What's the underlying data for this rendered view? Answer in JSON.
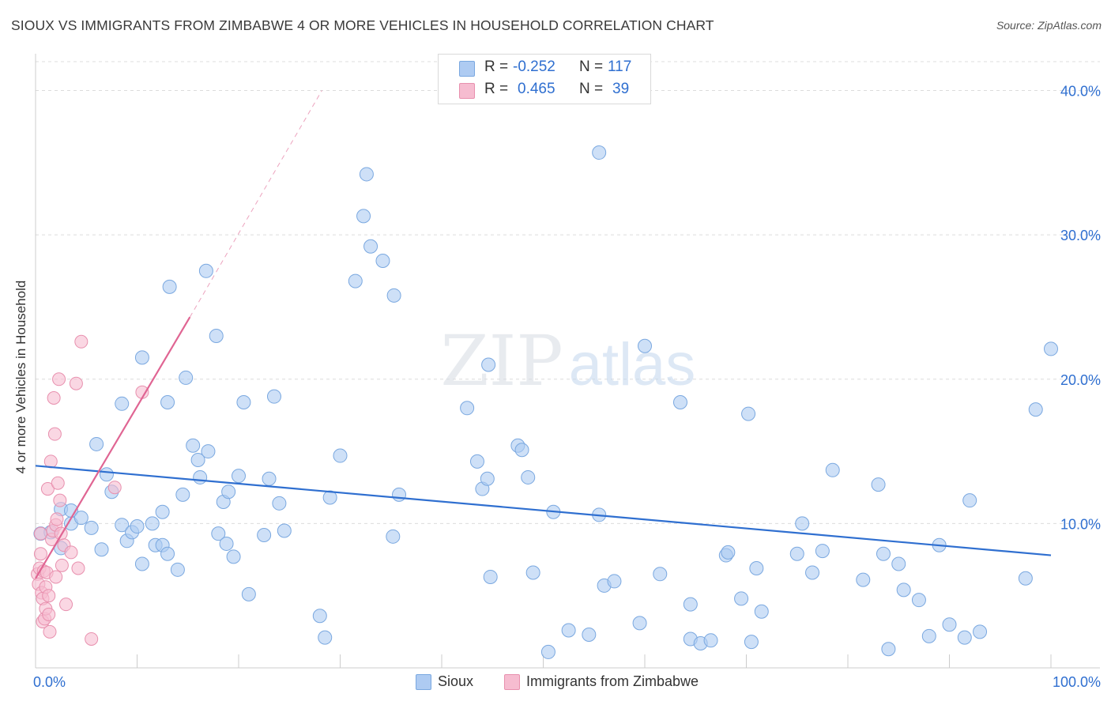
{
  "header": {
    "title": "SIOUX VS IMMIGRANTS FROM ZIMBABWE 4 OR MORE VEHICLES IN HOUSEHOLD CORRELATION CHART",
    "source": "Source: ZipAtlas.com"
  },
  "watermark": {
    "part1": "ZIP",
    "part2": "atlas"
  },
  "legend": {
    "r_label": "R =",
    "n_label": "N =",
    "rows": [
      {
        "r": "-0.252",
        "n": "117",
        "color": "#aecbf2"
      },
      {
        "r": "0.465",
        "n": "39",
        "color": "#f6bcd0"
      }
    ]
  },
  "bottom_legend": {
    "series1": "Sioux",
    "series2": "Immigrants from Zimbabwe"
  },
  "colors": {
    "sioux_fill": "#aecbf2",
    "sioux_stroke": "#7aa8e0",
    "sioux_line": "#2f6fd0",
    "zim_fill": "#f6bcd0",
    "zim_stroke": "#e890ae",
    "zim_line": "#e06593",
    "tick_text": "#2f6fd0"
  },
  "chart_data": {
    "type": "scatter",
    "title": "SIOUX VS IMMIGRANTS FROM ZIMBABWE 4 OR MORE VEHICLES IN HOUSEHOLD CORRELATION CHART",
    "xlabel": "",
    "ylabel": "4 or more Vehicles in Household",
    "xlim": [
      0,
      100
    ],
    "ylim": [
      0,
      42
    ],
    "x_tick_labels": [
      "0.0%",
      "100.0%"
    ],
    "y_ticks": [
      10,
      20,
      30,
      40
    ],
    "y_tick_labels": [
      "10.0%",
      "20.0%",
      "30.0%",
      "40.0%"
    ],
    "grid": true,
    "series": [
      {
        "name": "Sioux",
        "trend": {
          "x0": 0,
          "y0": 14.0,
          "x1": 100,
          "y1": 7.8
        },
        "points": [
          [
            0.5,
            9.3
          ],
          [
            1.5,
            9.4
          ],
          [
            2.5,
            8.3
          ],
          [
            2.5,
            11.0
          ],
          [
            3.5,
            10.0
          ],
          [
            3.5,
            10.9
          ],
          [
            4.5,
            10.4
          ],
          [
            5.5,
            9.7
          ],
          [
            6.0,
            15.5
          ],
          [
            6.5,
            8.2
          ],
          [
            7.0,
            13.4
          ],
          [
            7.5,
            12.2
          ],
          [
            8.5,
            9.9
          ],
          [
            8.5,
            18.3
          ],
          [
            9.0,
            8.8
          ],
          [
            9.5,
            9.4
          ],
          [
            10.0,
            9.8
          ],
          [
            10.5,
            21.5
          ],
          [
            10.5,
            7.2
          ],
          [
            11.5,
            10.0
          ],
          [
            11.8,
            8.5
          ],
          [
            12.5,
            10.8
          ],
          [
            12.5,
            8.5
          ],
          [
            13.0,
            7.9
          ],
          [
            13.0,
            18.4
          ],
          [
            13.2,
            26.4
          ],
          [
            14.0,
            6.8
          ],
          [
            14.5,
            12.0
          ],
          [
            14.8,
            20.1
          ],
          [
            15.5,
            15.4
          ],
          [
            16.0,
            14.4
          ],
          [
            16.2,
            13.2
          ],
          [
            16.8,
            27.5
          ],
          [
            17.0,
            15.0
          ],
          [
            17.8,
            23.0
          ],
          [
            18.0,
            9.3
          ],
          [
            18.5,
            11.5
          ],
          [
            18.8,
            8.6
          ],
          [
            19.0,
            12.2
          ],
          [
            19.5,
            7.7
          ],
          [
            20.0,
            13.3
          ],
          [
            20.5,
            18.4
          ],
          [
            21.0,
            5.1
          ],
          [
            22.5,
            9.2
          ],
          [
            23.0,
            13.1
          ],
          [
            23.5,
            18.8
          ],
          [
            24.0,
            11.4
          ],
          [
            24.5,
            9.5
          ],
          [
            28.0,
            3.6
          ],
          [
            28.5,
            2.1
          ],
          [
            29.0,
            11.8
          ],
          [
            30.0,
            14.7
          ],
          [
            31.5,
            26.8
          ],
          [
            32.3,
            31.3
          ],
          [
            32.6,
            34.2
          ],
          [
            33.0,
            29.2
          ],
          [
            34.2,
            28.2
          ],
          [
            35.3,
            25.8
          ],
          [
            35.2,
            9.1
          ],
          [
            35.8,
            12.0
          ],
          [
            42.5,
            18.0
          ],
          [
            43.5,
            14.3
          ],
          [
            44.0,
            12.4
          ],
          [
            44.5,
            13.1
          ],
          [
            44.6,
            21.0
          ],
          [
            44.8,
            6.3
          ],
          [
            47.5,
            15.4
          ],
          [
            47.9,
            15.1
          ],
          [
            48.5,
            13.2
          ],
          [
            49.0,
            6.6
          ],
          [
            50.5,
            1.1
          ],
          [
            51.0,
            10.8
          ],
          [
            52.5,
            2.6
          ],
          [
            54.5,
            2.3
          ],
          [
            55.5,
            35.7
          ],
          [
            55.5,
            10.6
          ],
          [
            56.0,
            5.7
          ],
          [
            57.0,
            6.0
          ],
          [
            59.5,
            3.1
          ],
          [
            60.0,
            22.3
          ],
          [
            61.5,
            6.5
          ],
          [
            63.5,
            18.4
          ],
          [
            64.5,
            4.4
          ],
          [
            64.5,
            2.0
          ],
          [
            65.5,
            1.7
          ],
          [
            66.5,
            1.9
          ],
          [
            68.0,
            7.8
          ],
          [
            68.2,
            8.0
          ],
          [
            69.5,
            4.8
          ],
          [
            70.2,
            17.6
          ],
          [
            70.5,
            1.8
          ],
          [
            71.0,
            6.9
          ],
          [
            71.5,
            3.9
          ],
          [
            75.0,
            7.9
          ],
          [
            75.5,
            10.0
          ],
          [
            76.5,
            6.6
          ],
          [
            77.5,
            8.1
          ],
          [
            78.5,
            13.7
          ],
          [
            81.5,
            6.1
          ],
          [
            83.0,
            12.7
          ],
          [
            83.5,
            7.9
          ],
          [
            84.0,
            1.3
          ],
          [
            85.0,
            7.2
          ],
          [
            85.5,
            5.4
          ],
          [
            87.0,
            4.7
          ],
          [
            88.0,
            2.2
          ],
          [
            89.0,
            8.5
          ],
          [
            90.0,
            3.0
          ],
          [
            91.5,
            2.1
          ],
          [
            92.0,
            11.6
          ],
          [
            93.0,
            2.5
          ],
          [
            97.5,
            6.2
          ],
          [
            98.5,
            17.9
          ],
          [
            100.0,
            22.1
          ]
        ]
      },
      {
        "name": "Immigrants from Zimbabwe",
        "trend": {
          "x0": 0,
          "y0": 6.2,
          "x1": 15.2,
          "y1": 24.3,
          "dash_x1": 28.2,
          "dash_y1": 40.0
        },
        "points": [
          [
            0.2,
            6.5
          ],
          [
            0.3,
            5.8
          ],
          [
            0.4,
            6.9
          ],
          [
            0.5,
            7.9
          ],
          [
            0.5,
            9.3
          ],
          [
            0.6,
            5.2
          ],
          [
            0.7,
            4.8
          ],
          [
            0.7,
            3.2
          ],
          [
            0.8,
            6.7
          ],
          [
            0.9,
            3.4
          ],
          [
            1.0,
            5.6
          ],
          [
            1.0,
            4.1
          ],
          [
            1.1,
            6.6
          ],
          [
            1.2,
            12.4
          ],
          [
            1.3,
            3.7
          ],
          [
            1.3,
            5.0
          ],
          [
            1.4,
            2.5
          ],
          [
            1.5,
            14.3
          ],
          [
            1.6,
            8.9
          ],
          [
            1.7,
            9.5
          ],
          [
            1.8,
            18.7
          ],
          [
            1.9,
            16.2
          ],
          [
            2.0,
            6.3
          ],
          [
            2.0,
            9.9
          ],
          [
            2.1,
            10.3
          ],
          [
            2.2,
            12.8
          ],
          [
            2.3,
            20.0
          ],
          [
            2.4,
            11.6
          ],
          [
            2.5,
            9.3
          ],
          [
            2.6,
            7.1
          ],
          [
            2.8,
            8.5
          ],
          [
            3.0,
            4.4
          ],
          [
            3.5,
            8.0
          ],
          [
            4.0,
            19.7
          ],
          [
            4.2,
            6.9
          ],
          [
            4.5,
            22.6
          ],
          [
            5.5,
            2.0
          ],
          [
            7.8,
            12.5
          ],
          [
            10.5,
            19.1
          ]
        ]
      }
    ]
  }
}
